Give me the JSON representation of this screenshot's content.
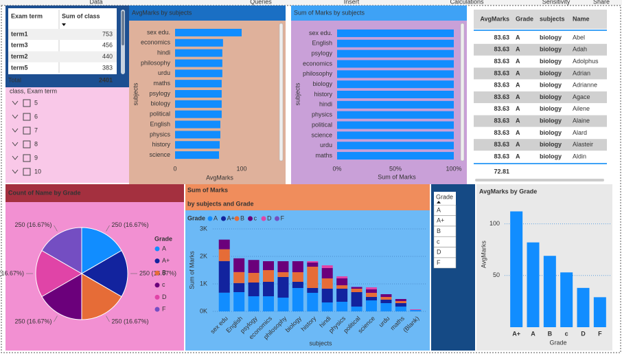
{
  "ribbon": [
    "Data",
    "Queries",
    "Insert",
    "Calculations",
    "Sensitivity",
    "Share"
  ],
  "term_table": {
    "columns": [
      "Exam term",
      "Sum of class"
    ],
    "rows": [
      [
        "term1",
        753
      ],
      [
        "term3",
        456
      ],
      [
        "term2",
        440
      ],
      [
        "term5",
        383
      ]
    ],
    "total": [
      "Total",
      2401
    ]
  },
  "class_slicer": {
    "title": "class, Exam term",
    "items": [
      "5",
      "6",
      "7",
      "8",
      "9",
      "10"
    ]
  },
  "name_table": {
    "columns": [
      "AvgMarks",
      "Grade",
      "subjects",
      "Name"
    ],
    "rows": [
      [
        83.63,
        "A",
        "biology",
        "Abel"
      ],
      [
        83.63,
        "A",
        "biology",
        "Adah"
      ],
      [
        83.63,
        "A",
        "biology",
        "Adolphus"
      ],
      [
        83.63,
        "A",
        "biology",
        "Adrian"
      ],
      [
        83.63,
        "A",
        "biology",
        "Adrianne"
      ],
      [
        83.63,
        "A",
        "biology",
        "Agace"
      ],
      [
        83.63,
        "A",
        "biology",
        "Ailene"
      ],
      [
        83.63,
        "A",
        "biology",
        "Alaine"
      ],
      [
        83.63,
        "A",
        "biology",
        "Alard"
      ],
      [
        83.63,
        "A",
        "biology",
        "Alasteir"
      ],
      [
        83.63,
        "A",
        "biology",
        "Aldin"
      ]
    ],
    "total": 72.81
  },
  "grade_slicer": {
    "title": "Grade",
    "items": [
      "A",
      "A+",
      "B",
      "c",
      "D",
      "F"
    ]
  },
  "chart_data": [
    {
      "type": "hbar",
      "title": "AvgMarks by subjects",
      "xlabel": "AvgMarks",
      "ylabel": "subjects",
      "categories": [
        "sex edu.",
        "economics",
        "hindi",
        "philosophy",
        "urdu",
        "maths",
        "psylogy",
        "biology",
        "political",
        "English",
        "physics",
        "history",
        "science"
      ],
      "values": [
        100,
        72,
        71,
        71,
        71,
        70,
        70,
        70,
        70,
        68,
        68,
        67,
        66
      ],
      "xlim": [
        0,
        150
      ],
      "xticks": [
        0,
        100
      ],
      "color": "#118dff"
    },
    {
      "type": "hbar",
      "title": "Sum of Marks by subjects",
      "xlabel": "Sum of Marks",
      "ylabel": "subjects",
      "categories": [
        "sex edu.",
        "English",
        "psylogy",
        "economics",
        "philosophy",
        "biology",
        "history",
        "hindi",
        "physics",
        "political",
        "science",
        "urdu",
        "maths"
      ],
      "values": [
        100,
        100,
        100,
        100,
        100,
        100,
        100,
        100,
        100,
        100,
        100,
        100,
        100
      ],
      "xlim": [
        0,
        100
      ],
      "xticks": [
        {
          "value": 0,
          "label": "0%"
        },
        {
          "value": 50,
          "label": "50%"
        },
        {
          "value": 100,
          "label": "100%"
        }
      ],
      "color": "#118dff"
    },
    {
      "type": "pie",
      "title": "Count of Name by Grade",
      "legend_title": "Grade",
      "categories": [
        "A",
        "A+",
        "B",
        "c",
        "D",
        "F"
      ],
      "values": [
        250,
        250,
        250,
        250,
        250,
        250
      ],
      "value_labels": [
        "250 (16.67%)",
        "250 (16.67%)",
        "250 (16.67%)",
        "250 (16.67%)",
        "250 (16.67%)",
        "250 (16.67%)"
      ],
      "colors": [
        "#118dff",
        "#12239e",
        "#e66c37",
        "#6b007b",
        "#e044a7",
        "#744ec2"
      ]
    },
    {
      "type": "stacked",
      "title": "Sum of Marks",
      "subtitle": "by subjects and Grade",
      "legend_title": "Grade",
      "xlabel": "subjects",
      "ylabel": "Sum of Marks",
      "categories": [
        "sex edu",
        "English",
        "psylogy",
        "economics",
        "philosophy",
        "biology",
        "history",
        "hindi",
        "physics",
        "political",
        "science",
        "urdu",
        "maths",
        "(Blank)"
      ],
      "series": [
        {
          "name": "A",
          "color": "#118dff",
          "values": [
            680,
            700,
            550,
            550,
            500,
            850,
            675,
            325,
            350,
            175,
            400,
            300,
            175,
            50
          ]
        },
        {
          "name": "A+",
          "color": "#12239e",
          "values": [
            1150,
            330,
            500,
            525,
            750,
            225,
            175,
            500,
            475,
            525,
            125,
            125,
            125,
            0
          ]
        },
        {
          "name": "B",
          "color": "#e66c37",
          "values": [
            430,
            400,
            350,
            425,
            175,
            350,
            775,
            375,
            125,
            125,
            150,
            100,
            75,
            0
          ]
        },
        {
          "name": "c",
          "color": "#6b007b",
          "values": [
            350,
            500,
            470,
            325,
            400,
            400,
            150,
            375,
            250,
            50,
            125,
            100,
            75,
            0
          ]
        },
        {
          "name": "D",
          "color": "#e044a7",
          "values": [
            0,
            0,
            0,
            0,
            0,
            0,
            50,
            100,
            75,
            0,
            75,
            0,
            0,
            25
          ]
        },
        {
          "name": "F",
          "color": "#744ec2",
          "values": [
            0,
            0,
            0,
            0,
            0,
            0,
            0,
            0,
            0,
            25,
            0,
            0,
            0,
            0
          ]
        }
      ],
      "ylim": [
        0,
        3200
      ],
      "yticks": [
        {
          "value": 0,
          "label": "0K"
        },
        {
          "value": 1000,
          "label": "1K"
        },
        {
          "value": 2000,
          "label": "2K"
        },
        {
          "value": 3000,
          "label": "3K"
        }
      ],
      "grid": true
    },
    {
      "type": "vbar",
      "title": "AvgMarks by Grade",
      "xlabel": "Grade",
      "ylabel": "AvgMarks",
      "categories": [
        "A+",
        "A",
        "B",
        "c",
        "D",
        "F"
      ],
      "values": [
        112,
        82,
        69,
        53,
        38,
        29
      ],
      "ylim": [
        0,
        117
      ],
      "yticks": [
        50,
        100
      ],
      "grid": true,
      "color": "#118dff"
    }
  ]
}
